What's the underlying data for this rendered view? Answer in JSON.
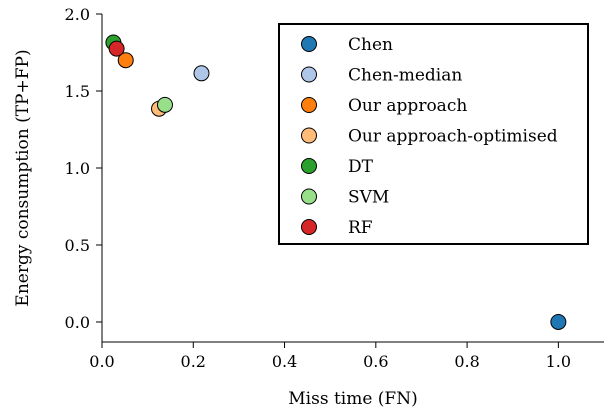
{
  "chart_data": {
    "type": "scatter",
    "title": "",
    "xlabel": "Miss time (FN)",
    "ylabel": "Energy consumption (TP+FP)",
    "xlim": [
      0.0,
      1.1
    ],
    "ylim": [
      -0.13,
      2.0
    ],
    "xticks": [
      0.0,
      0.2,
      0.4,
      0.6,
      0.8,
      1.0
    ],
    "xtick_labels": [
      "0.0",
      "0.2",
      "0.4",
      "0.6",
      "0.8",
      "1.0"
    ],
    "yticks": [
      0.0,
      0.5,
      1.0,
      1.5,
      2.0
    ],
    "ytick_labels": [
      "0.0",
      "0.5",
      "1.0",
      "1.5",
      "2.0"
    ],
    "grid": false,
    "legend_position": "top-right",
    "series": [
      {
        "name": "Chen",
        "color": "#1f77b4",
        "points": [
          {
            "x": 1.0,
            "y": 0.0
          }
        ]
      },
      {
        "name": "Chen-median",
        "color": "#aec7e8",
        "points": [
          {
            "x": 0.218,
            "y": 1.615
          }
        ]
      },
      {
        "name": "Our approach",
        "color": "#ff7f0e",
        "points": [
          {
            "x": 0.052,
            "y": 1.7
          }
        ]
      },
      {
        "name": "Our approach-optimised",
        "color": "#ffbb78",
        "points": [
          {
            "x": 0.125,
            "y": 1.385
          }
        ]
      },
      {
        "name": "DT",
        "color": "#2ca02c",
        "points": [
          {
            "x": 0.025,
            "y": 1.815
          }
        ]
      },
      {
        "name": "SVM",
        "color": "#98df8a",
        "points": [
          {
            "x": 0.138,
            "y": 1.41
          }
        ]
      },
      {
        "name": "RF",
        "color": "#d62728",
        "points": [
          {
            "x": 0.032,
            "y": 1.775
          }
        ]
      }
    ]
  }
}
